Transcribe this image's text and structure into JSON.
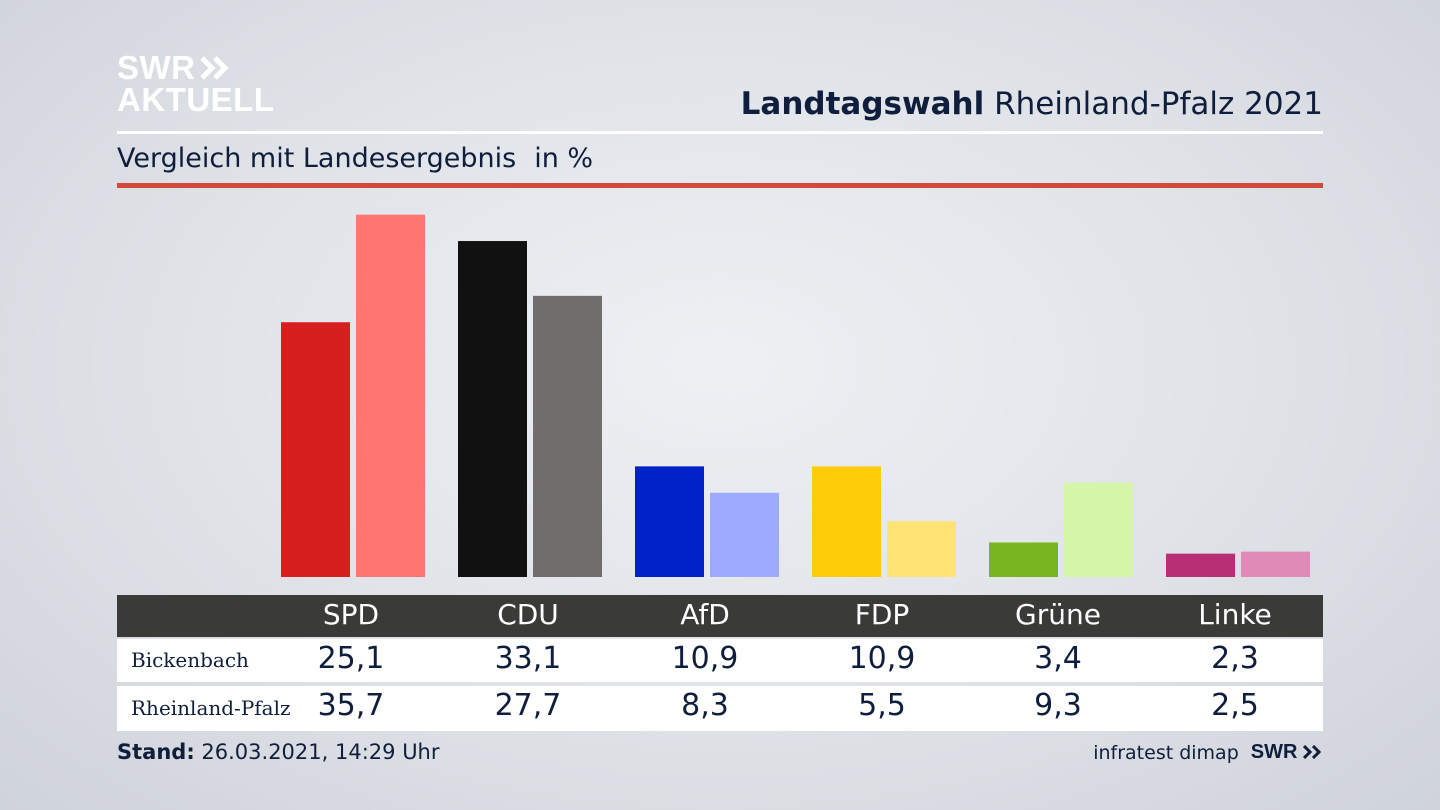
{
  "logo": {
    "line1": "SWR",
    "line2": "AKTUELL"
  },
  "header": {
    "title_bold": "Landtagswahl",
    "title_rest": "Rheinland-Pfalz 2021"
  },
  "subtitle": {
    "text": "Vergleich mit Landesergebnis",
    "unit": "in %"
  },
  "chart_data": {
    "type": "bar",
    "categories": [
      "SPD",
      "CDU",
      "AfD",
      "FDP",
      "Grüne",
      "Linke"
    ],
    "series": [
      {
        "name": "Bickenbach",
        "values": [
          25.1,
          33.1,
          10.9,
          10.9,
          3.4,
          2.3
        ]
      },
      {
        "name": "Rheinland-Pfalz",
        "values": [
          35.7,
          27.7,
          8.3,
          5.5,
          9.3,
          2.5
        ]
      }
    ],
    "display_values": [
      [
        "25,1",
        "33,1",
        "10,9",
        "10,9",
        "3,4",
        "2,3"
      ],
      [
        "35,7",
        "27,7",
        "8,3",
        "5,5",
        "9,3",
        "2,5"
      ]
    ],
    "colors": {
      "Bickenbach": [
        "#d71f1f",
        "#111111",
        "#0022c8",
        "#ffcc0a",
        "#79b51e",
        "#b82f76"
      ],
      "Rheinland-Pfalz": [
        "#ff7670",
        "#6f6e6c",
        "#9cabff",
        "#ffe375",
        "#d5f5a9",
        "#e08ab7"
      ]
    },
    "ylim": [
      0,
      36
    ],
    "grid": false,
    "legend": "none"
  },
  "footer": {
    "stand_label": "Stand:",
    "stand_value": "26.03.2021, 14:29 Uhr",
    "source": "infratest dimap",
    "source_logo": "SWR"
  }
}
